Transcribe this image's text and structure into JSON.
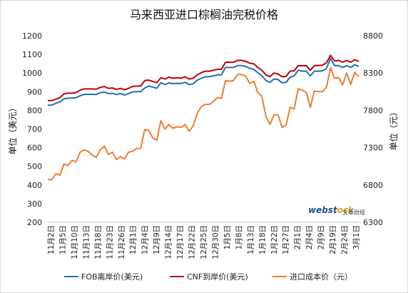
{
  "chart_data": {
    "type": "line",
    "title": "马来西亚进口棕榈油完税价格",
    "ylabel_left": "单位（美元）",
    "ylabel_right": "单位（元）",
    "ylim_left": [
      200,
      1200
    ],
    "ylim_right": [
      6300,
      8800
    ],
    "yticks_left": [
      200,
      300,
      400,
      500,
      600,
      700,
      800,
      900,
      1000,
      1100,
      1200
    ],
    "yticks_right": [
      6300,
      6800,
      7300,
      7800,
      8300,
      8800
    ],
    "grid": false,
    "legend_position": "bottom",
    "xtick_labels": [
      "11月2日",
      "11月5日",
      "11月10日",
      "11月13日",
      "11月18日",
      "11月23日",
      "11月26日",
      "12月1日",
      "12月4日",
      "12月9日",
      "12月14日",
      "12月17日",
      "12月22日",
      "12月25日",
      "12月30日",
      "1月5日",
      "1月8日",
      "1月13日",
      "1月18日",
      "1月22日",
      "1月27日",
      "2月1日",
      "2月4日",
      "2月9日",
      "2月19日",
      "2月24日",
      "3月1日"
    ],
    "series": [
      {
        "name": "FOB离岸价(美元)",
        "axis": "left",
        "color": "#1f6fb5",
        "values": [
          828,
          828,
          838,
          845,
          862,
          865,
          865,
          868,
          878,
          886,
          886,
          886,
          885,
          895,
          898,
          890,
          891,
          885,
          890,
          882,
          890,
          899,
          900,
          900,
          920,
          930,
          925,
          918,
          948,
          938,
          948,
          943,
          945,
          944,
          950,
          938,
          942,
          962,
          972,
          980,
          980,
          985,
          990,
          990,
          1030,
          1030,
          1030,
          1040,
          1040,
          1035,
          1025,
          1020,
          1002,
          985,
          960,
          950,
          968,
          965,
          948,
          950,
          978,
          985,
          1015,
          1010,
          1010,
          985,
          1010,
          1010,
          1012,
          1025,
          1078,
          1040,
          1040,
          1030,
          1040,
          1030,
          1045,
          1035
        ]
      },
      {
        "name": "CNF到岸价(美元)",
        "axis": "left",
        "color": "#c00000",
        "values": [
          852,
          852,
          860,
          868,
          888,
          892,
          892,
          895,
          908,
          915,
          915,
          915,
          913,
          923,
          928,
          918,
          920,
          912,
          918,
          910,
          918,
          928,
          930,
          930,
          960,
          962,
          955,
          948,
          975,
          968,
          978,
          972,
          975,
          972,
          980,
          968,
          972,
          990,
          1002,
          1010,
          1010,
          1015,
          1020,
          1020,
          1058,
          1058,
          1058,
          1068,
          1068,
          1063,
          1053,
          1050,
          1030,
          1015,
          990,
          980,
          1000,
          995,
          980,
          982,
          1010,
          1012,
          1040,
          1038,
          1040,
          1015,
          1040,
          1040,
          1042,
          1055,
          1095,
          1065,
          1068,
          1058,
          1068,
          1058,
          1072,
          1062
        ]
      },
      {
        "name": "进口成本价（元）",
        "axis": "right",
        "color": "#ed7d31",
        "values": [
          6870,
          6870,
          6950,
          6930,
          7080,
          7060,
          7130,
          7110,
          7240,
          7270,
          7250,
          7200,
          7170,
          7270,
          7320,
          7210,
          7240,
          7140,
          7180,
          7150,
          7240,
          7250,
          7290,
          7290,
          7540,
          7530,
          7430,
          7400,
          7660,
          7550,
          7610,
          7560,
          7580,
          7570,
          7610,
          7520,
          7590,
          7760,
          7850,
          7880,
          7880,
          7920,
          7970,
          7960,
          8200,
          8190,
          8200,
          8280,
          8280,
          8260,
          8160,
          8190,
          8040,
          7990,
          7720,
          7610,
          7740,
          7740,
          7570,
          7600,
          7840,
          7820,
          8090,
          8070,
          8040,
          7840,
          8060,
          8050,
          8050,
          8110,
          8370,
          8230,
          8240,
          8140,
          8300,
          8150,
          8310,
          8250
        ]
      }
    ]
  },
  "watermark": {
    "brand": "webstock",
    "brand_accent": "ock",
    "subtitle": "文華財經"
  }
}
